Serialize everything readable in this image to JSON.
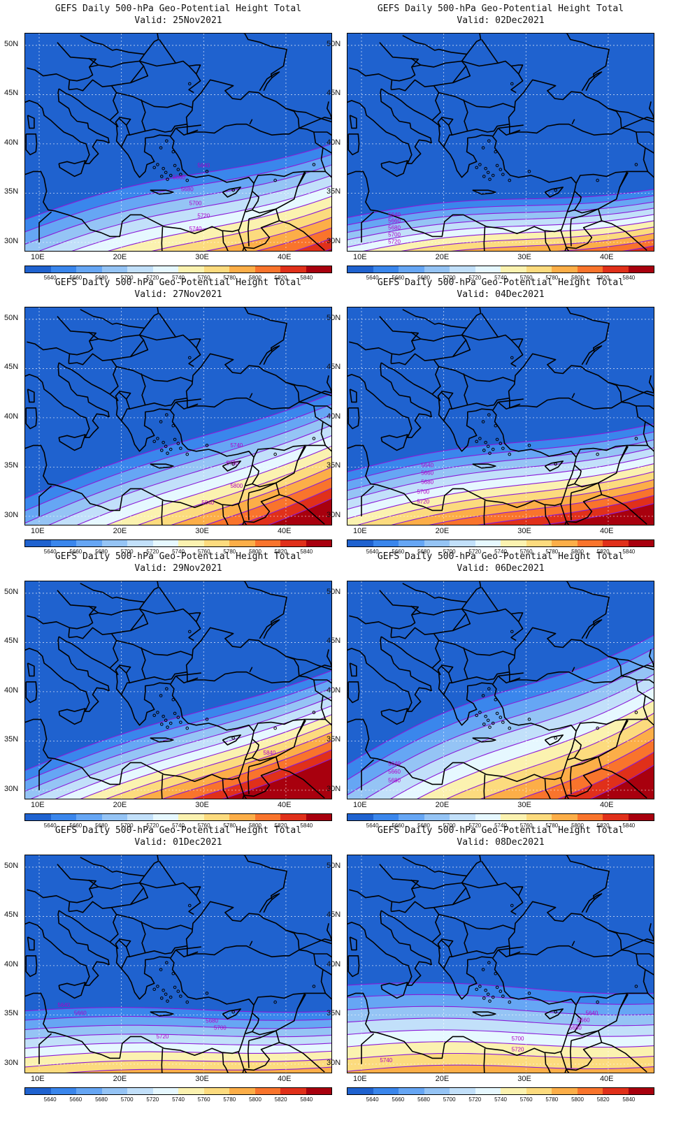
{
  "title": "GEFS Daily 500-hPa Geo-Potential Height Total",
  "valid_prefix": "Valid:",
  "lat_labels": [
    "50N",
    "45N",
    "40N",
    "35N",
    "30N"
  ],
  "lon_labels": [
    "10E",
    "20E",
    "30E",
    "40E"
  ],
  "colorbar": {
    "levels": [
      "5640",
      "5660",
      "5680",
      "5700",
      "5720",
      "5740",
      "5760",
      "5780",
      "5800",
      "5820",
      "5840"
    ],
    "colors": [
      "#1f62cf",
      "#3a86ec",
      "#66a6f4",
      "#95c4f5",
      "#c2e0fa",
      "#e6f8ff",
      "#fbf2b0",
      "#fcdb7e",
      "#fcae48",
      "#f9742c",
      "#e0301a",
      "#a8000e"
    ]
  },
  "panels": [
    {
      "valid": "25Nov2021",
      "contour_labels": [
        "5640",
        "5660",
        "5680",
        "5700",
        "5720",
        "5740"
      ]
    },
    {
      "valid": "02Dec2021",
      "contour_labels": [
        "5640",
        "5660",
        "5680",
        "5700",
        "5720"
      ]
    },
    {
      "valid": "27Nov2021",
      "contour_labels": [
        "5740",
        "5760",
        "5800",
        "5840"
      ]
    },
    {
      "valid": "04Dec2021",
      "contour_labels": [
        "5640",
        "5660",
        "5680",
        "5700",
        "5720"
      ]
    },
    {
      "valid": "29Nov2021",
      "contour_labels": [
        "5840"
      ]
    },
    {
      "valid": "06Dec2021",
      "contour_labels": [
        "5640",
        "5660",
        "5680"
      ]
    },
    {
      "valid": "01Dec2021",
      "contour_labels": [
        "5640",
        "5660",
        "5680",
        "5700",
        "5720"
      ]
    },
    {
      "valid": "08Dec2021",
      "contour_labels": [
        "5640",
        "5660",
        "5680",
        "5700",
        "5720",
        "5740"
      ]
    }
  ]
}
